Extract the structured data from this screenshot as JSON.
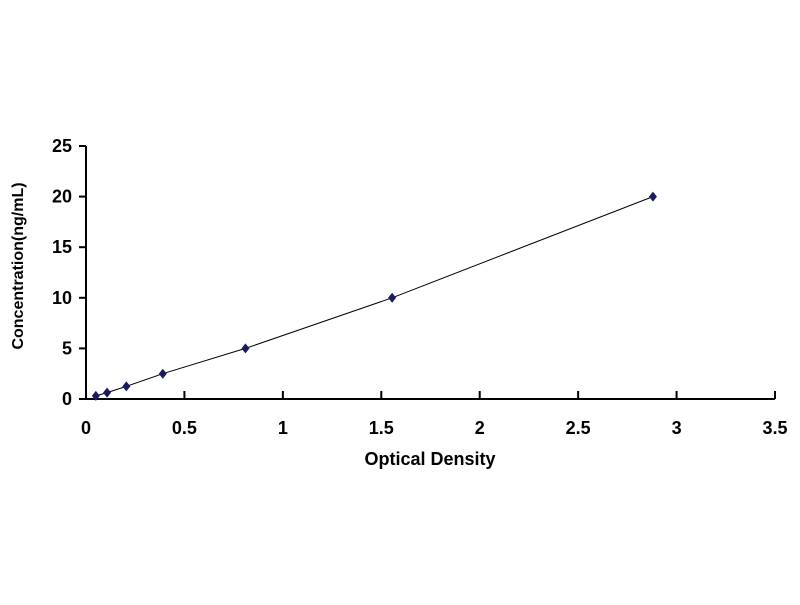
{
  "chart_data": {
    "type": "scatter",
    "title": "",
    "xlabel": "Optical Density",
    "ylabel": "Concentration(ng/mL)",
    "xlim": [
      0,
      3.5
    ],
    "ylim": [
      0,
      25
    ],
    "x_ticks": [
      "0",
      "0.5",
      "1",
      "1.5",
      "2",
      "2.5",
      "3",
      "3.5"
    ],
    "y_ticks": [
      "0",
      "5",
      "10",
      "15",
      "20",
      "25"
    ],
    "grid": false,
    "legend": "none",
    "trendline": true,
    "point_color": "#1a1a5e",
    "line_color": "#000000",
    "series": [
      {
        "x": [
          0.05,
          0.107,
          0.205,
          0.39,
          0.81,
          1.555,
          2.88
        ],
        "y": [
          0.31,
          0.63,
          1.25,
          2.5,
          5,
          10,
          20
        ]
      }
    ]
  }
}
